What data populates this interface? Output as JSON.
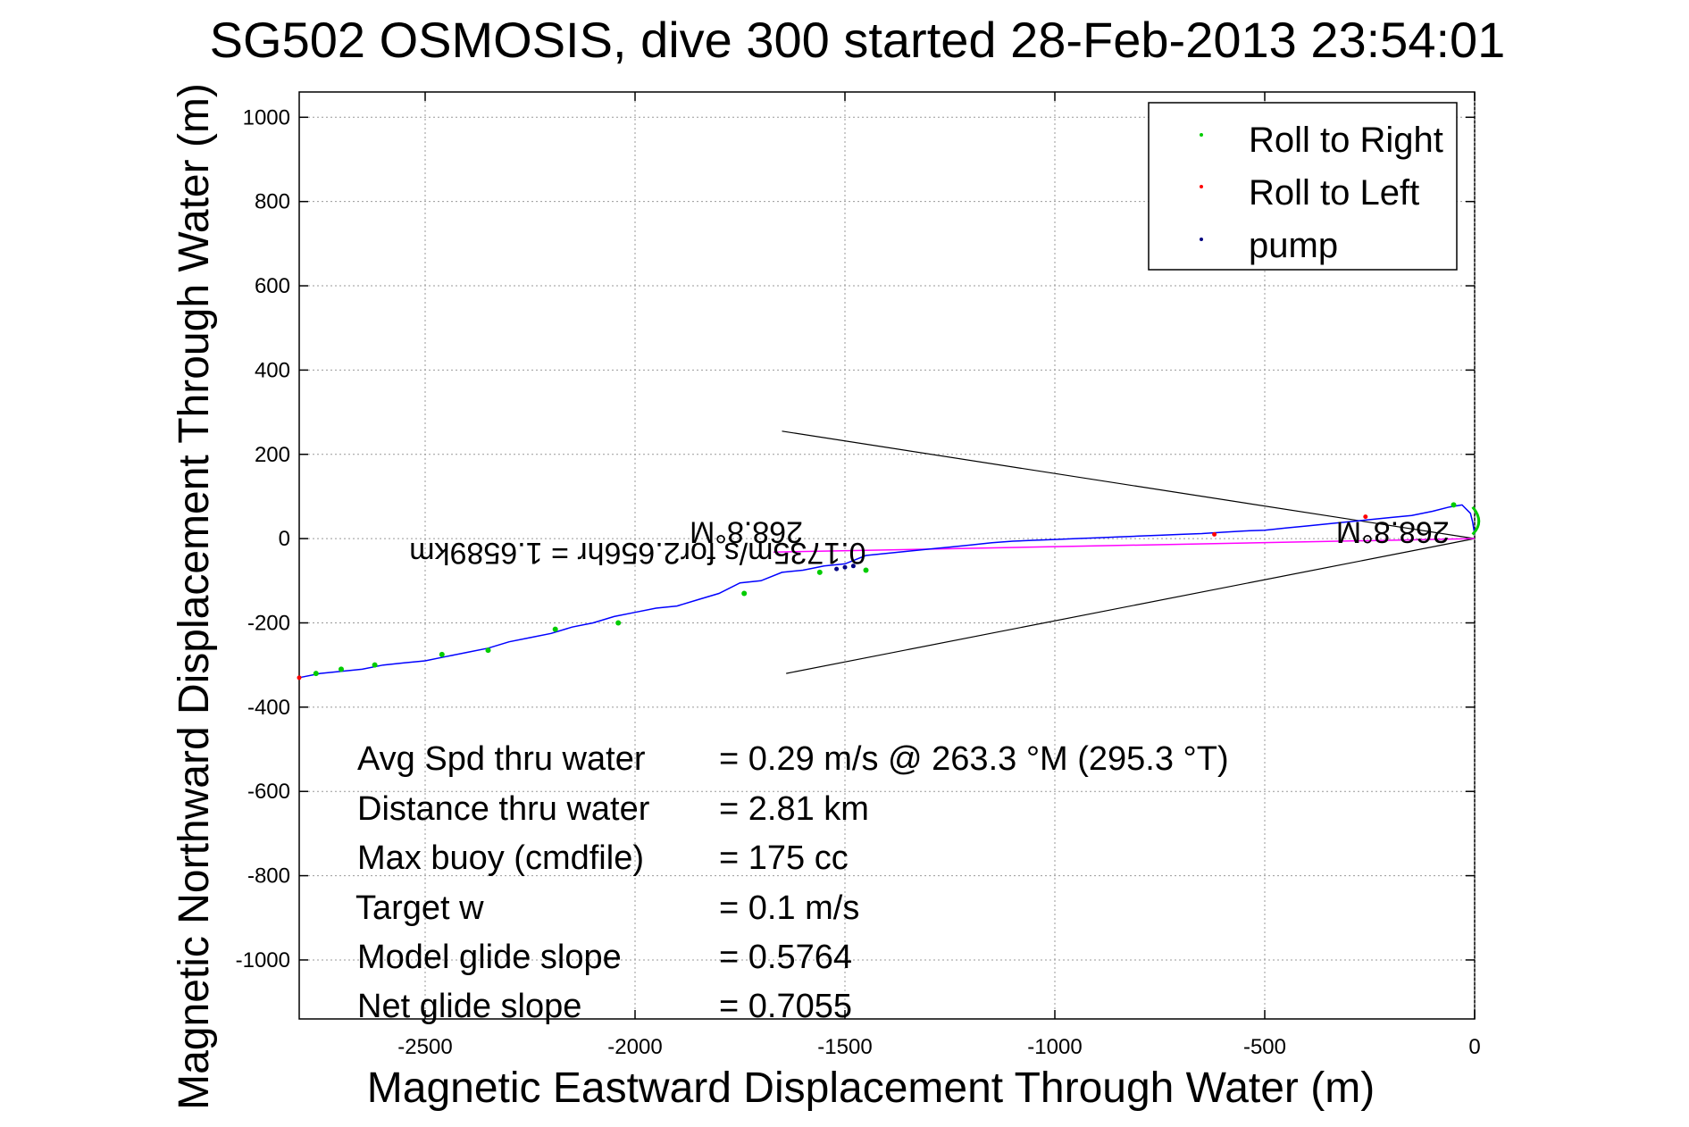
{
  "chart_data": {
    "type": "line",
    "title": "SG502 OSMOSIS, dive 300 started 28-Feb-2013 23:54:01",
    "xlabel": "Magnetic Eastward Displacement Through Water (m)",
    "ylabel": "Magnetic Northward Displacement Through Water (m)",
    "xlim": [
      -2800,
      0
    ],
    "ylim": [
      -1140,
      1060
    ],
    "xticks": [
      -2500,
      -2000,
      -1500,
      -1000,
      -500,
      0
    ],
    "yticks": [
      1000,
      800,
      600,
      400,
      200,
      0,
      -200,
      -400,
      -600,
      -800,
      -1000
    ],
    "grid": true,
    "legend_placement": "top-right",
    "legend": [
      {
        "label": "Roll to Right",
        "color": "#00cc00"
      },
      {
        "label": "Roll to Left",
        "color": "#ff0000"
      },
      {
        "label": "pump",
        "color": "#000080"
      }
    ],
    "track": {
      "color": "#0000ff",
      "x": [
        0,
        -5,
        -10,
        -30,
        -60,
        -100,
        -150,
        -200,
        -250,
        -300,
        -350,
        -400,
        -450,
        -500,
        -550,
        -600,
        -650,
        -700,
        -750,
        -800,
        -850,
        -900,
        -950,
        -1000,
        -1050,
        -1100,
        -1150,
        -1200,
        -1250,
        -1300,
        -1350,
        -1400,
        -1450,
        -1500,
        -1550,
        -1600,
        -1650,
        -1700,
        -1750,
        -1800,
        -1850,
        -1900,
        -1950,
        -2000,
        -2050,
        -2100,
        -2150,
        -2200,
        -2250,
        -2300,
        -2350,
        -2400,
        -2450,
        -2500,
        -2550,
        -2600,
        -2650,
        -2700,
        -2750,
        -2800
      ],
      "y": [
        10,
        40,
        60,
        80,
        75,
        65,
        55,
        50,
        45,
        40,
        35,
        30,
        25,
        20,
        18,
        15,
        12,
        10,
        8,
        6,
        4,
        2,
        0,
        -2,
        -4,
        -6,
        -10,
        -15,
        -20,
        -25,
        -30,
        -35,
        -40,
        -60,
        -65,
        -75,
        -80,
        -100,
        -105,
        -130,
        -145,
        -160,
        -165,
        -175,
        -185,
        -200,
        -210,
        -225,
        -235,
        -245,
        -260,
        -270,
        -280,
        -290,
        -295,
        -300,
        -310,
        -315,
        -320,
        -330
      ]
    },
    "roll_right_x": [
      -50,
      -1450,
      -1560,
      -1740,
      -2040,
      -2190,
      -2350,
      -2460,
      -2620,
      -2700,
      -2760
    ],
    "roll_right_y": [
      80,
      -75,
      -80,
      -130,
      -200,
      -215,
      -265,
      -275,
      -300,
      -310,
      -320
    ],
    "roll_left_x": [
      -260,
      -620,
      -2800
    ],
    "roll_left_y": [
      52,
      10,
      -330
    ],
    "pump_x": [
      -1480,
      -1500,
      -1520
    ],
    "pump_y": [
      -65,
      -68,
      -72
    ],
    "heading_line": {
      "color": "#ff00ff",
      "x": [
        -1670,
        0
      ],
      "y": [
        -32,
        0
      ]
    },
    "cone_lines": [
      {
        "x": [
          -1650,
          0
        ],
        "y": [
          255,
          0
        ]
      },
      {
        "x": [
          -1640,
          0
        ],
        "y": [
          -320,
          0
        ]
      }
    ],
    "annotations": [
      {
        "text": "268.8°M",
        "x": -1600,
        "y": 40
      },
      {
        "text": "268.8°M",
        "x": -60,
        "y": 40
      },
      {
        "text": "0.1735m/s for2.656hr = 1.6589km",
        "x": -1450,
        "y": -10
      }
    ],
    "stats": [
      {
        "label": "Avg Spd thru water",
        "value": "=  0.29 m/s @ 263.3 °M (295.3 °T)"
      },
      {
        "label": "Distance thru water",
        "value": "=  2.81 km"
      },
      {
        "label": "Max buoy (cmdfile)",
        "value": "= 175 cc"
      },
      {
        "label": "Target w",
        "value": "= 0.1 m/s"
      },
      {
        "label": "Model glide slope",
        "value": "= 0.5764"
      },
      {
        "label": "Net glide slope",
        "value": "= 0.7055"
      }
    ]
  }
}
